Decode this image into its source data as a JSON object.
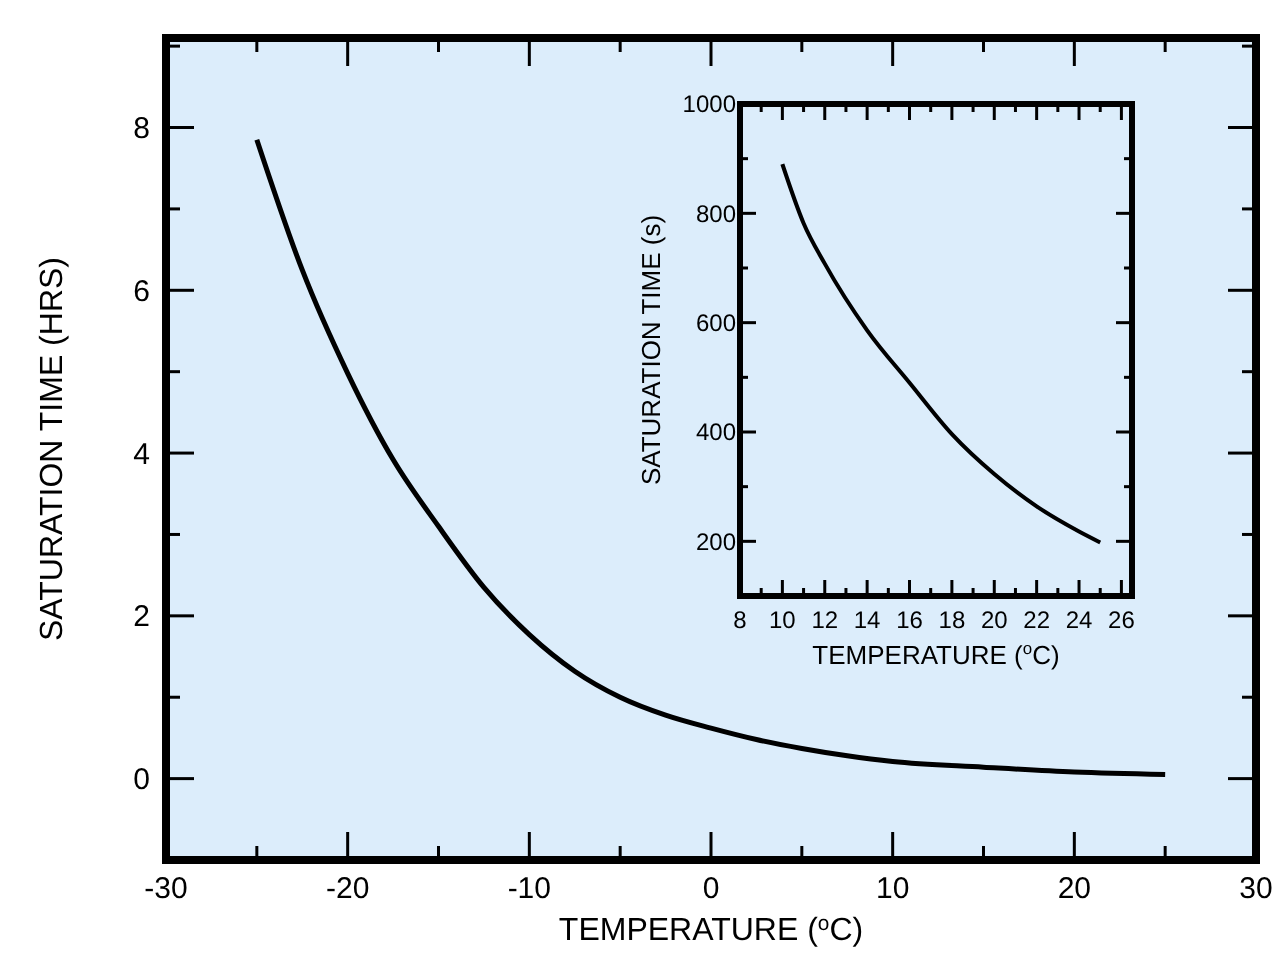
{
  "chart_data": [
    {
      "type": "line",
      "xlabel": "TEMPERATURE ($^{o}$C)",
      "ylabel": "SATURATION TIME (HRS)",
      "x": [
        -25,
        -22.5,
        -20,
        -17.5,
        -15,
        -12.5,
        -10,
        -7.5,
        -5,
        -2.5,
        0,
        2.5,
        5,
        7.5,
        10,
        15,
        20,
        25
      ],
      "series": [
        {
          "color": "#000000",
          "values": [
            7.85,
            6.25,
            4.98,
            3.92,
            3.1,
            2.35,
            1.77,
            1.32,
            1.0,
            0.78,
            0.62,
            0.48,
            0.37,
            0.28,
            0.21,
            0.14,
            0.08,
            0.05
          ]
        }
      ],
      "xlim": [
        -30,
        30
      ],
      "ylim": [
        -1,
        9.1
      ],
      "xticks": [
        -30,
        {
          "value": -25,
          "label": null
        },
        -20,
        {
          "value": -15,
          "label": null
        },
        -10,
        {
          "value": -5,
          "label": null
        },
        0,
        {
          "value": 5,
          "label": null
        },
        10,
        {
          "value": 15,
          "label": null
        },
        20,
        {
          "value": 25,
          "label": null
        },
        30
      ],
      "yticks": [
        {
          "value": -1,
          "label": null
        },
        0,
        {
          "value": 1,
          "label": null
        },
        2,
        {
          "value": 3,
          "label": null
        },
        4,
        {
          "value": 5,
          "label": null
        },
        6,
        {
          "value": 7,
          "label": null
        },
        8,
        {
          "value": 9,
          "label": null
        }
      ],
      "grid": false,
      "marker": "none",
      "line_style": "solid"
    },
    {
      "type": "line",
      "xlabel": "TEMPERATURE ($^{o}$C)",
      "ylabel": "SATURATION TIME (s)",
      "x": [
        10,
        11,
        12,
        14,
        16,
        18,
        20,
        22,
        24,
        25
      ],
      "series": [
        {
          "color": "#000000",
          "values": [
            890,
            782,
            708,
            586,
            490,
            396,
            323,
            264,
            218,
            198
          ]
        }
      ],
      "xlim": [
        8,
        26.5
      ],
      "ylim": [
        100,
        1000
      ],
      "xticks": [
        8,
        {
          "value": 9,
          "label": null
        },
        10,
        {
          "value": 11,
          "label": null
        },
        12,
        {
          "value": 13,
          "label": null
        },
        14,
        {
          "value": 15,
          "label": null
        },
        16,
        {
          "value": 17,
          "label": null
        },
        18,
        {
          "value": 19,
          "label": null
        },
        20,
        {
          "value": 21,
          "label": null
        },
        22,
        {
          "value": 23,
          "label": null
        },
        24,
        {
          "value": 25,
          "label": null
        },
        26
      ],
      "yticks": [
        {
          "value": 100,
          "label": null
        },
        200,
        {
          "value": 300,
          "label": null
        },
        400,
        {
          "value": 500,
          "label": null
        },
        600,
        {
          "value": 700,
          "label": null
        },
        800,
        {
          "value": 900,
          "label": null
        },
        1000
      ],
      "grid": false,
      "marker": "none",
      "line_style": "solid"
    }
  ]
}
